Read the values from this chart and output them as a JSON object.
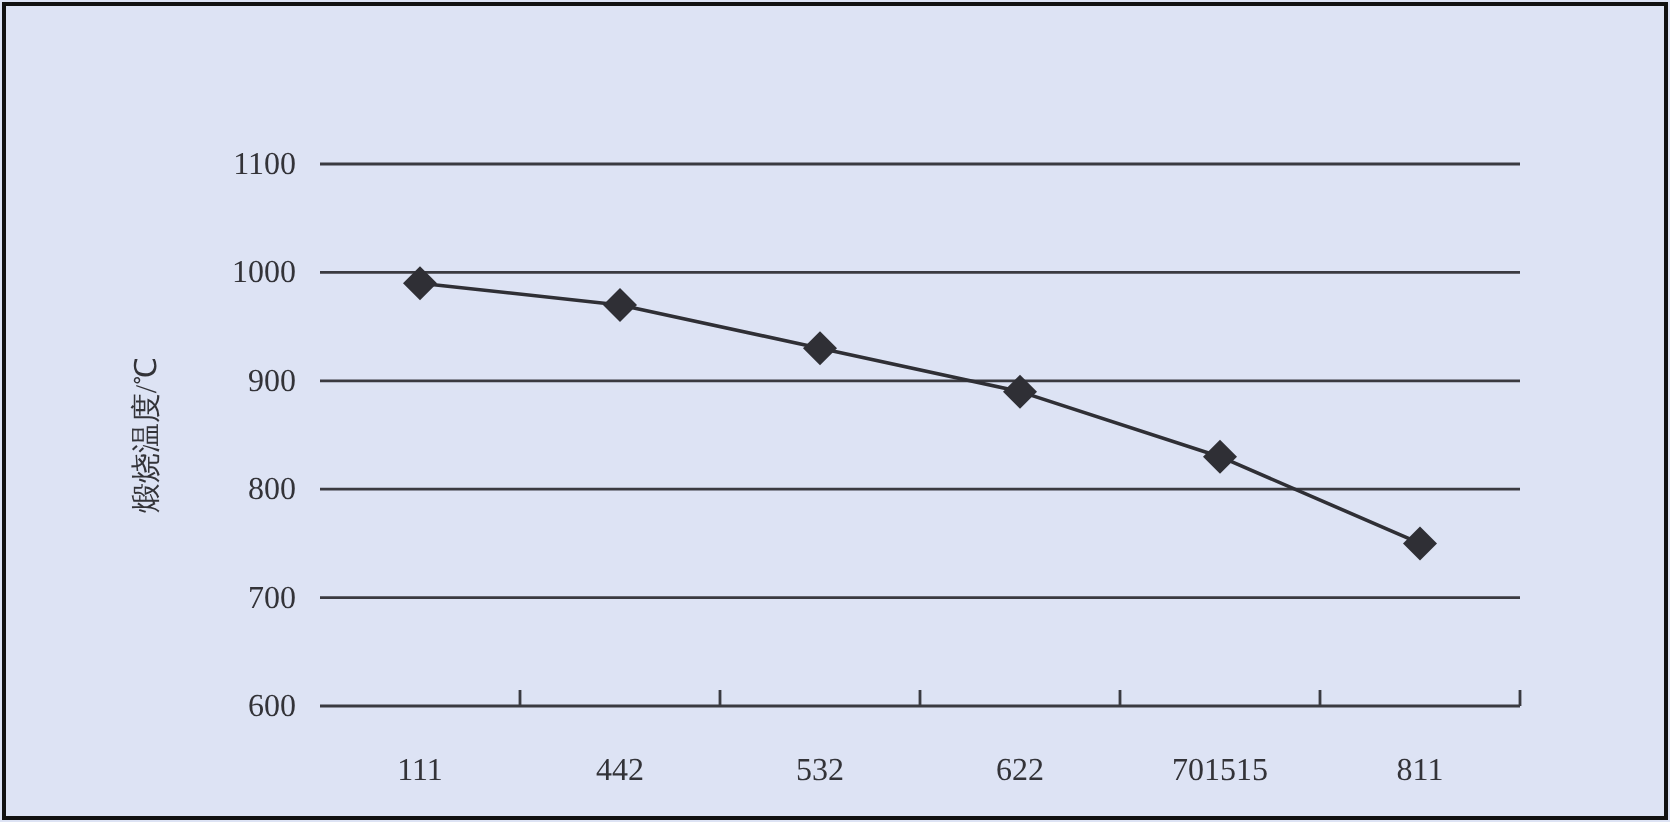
{
  "chart_data": {
    "type": "line",
    "ylabel": "煅烧温度/℃",
    "categories": [
      "111",
      "442",
      "532",
      "622",
      "701515",
      "811"
    ],
    "series": [
      {
        "color": "#2f2f35",
        "values": [
          990,
          970,
          930,
          890,
          830,
          750
        ]
      }
    ],
    "ylim": [
      600,
      1100
    ],
    "yticks": [
      600,
      700,
      800,
      900,
      1000,
      1100
    ],
    "grid": "y",
    "marker": "diamond",
    "line_style": "solid"
  }
}
